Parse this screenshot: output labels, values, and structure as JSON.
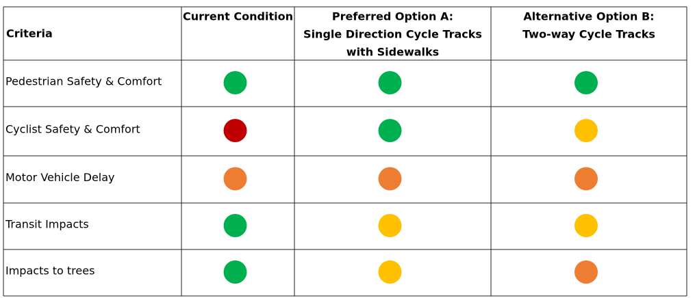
{
  "table": {
    "header": [
      [
        "Criteria"
      ],
      [
        "Current Condition"
      ],
      [
        "Preferred Option A:",
        "Single Direction Cycle Tracks",
        "with Sidewalks"
      ],
      [
        "Alternative Option B:",
        "Two-way Cycle Tracks"
      ]
    ],
    "rows": [
      {
        "label": "Pedestrian Safety & Comfort",
        "ratings": [
          "#00b050",
          "#00b050",
          "#00b050"
        ]
      },
      {
        "label": "Cyclist Safety & Comfort",
        "ratings": [
          "#c00000",
          "#00b050",
          "#ffc000"
        ]
      },
      {
        "label": "Motor Vehicle Delay",
        "ratings": [
          "#ed7d31",
          "#ed7d31",
          "#ed7d31"
        ]
      },
      {
        "label": "Transit Impacts",
        "ratings": [
          "#00b050",
          "#ffc000",
          "#ffc000"
        ]
      },
      {
        "label": "Impacts to trees",
        "ratings": [
          "#00b050",
          "#ffc000",
          "#ed7d31"
        ]
      }
    ]
  }
}
